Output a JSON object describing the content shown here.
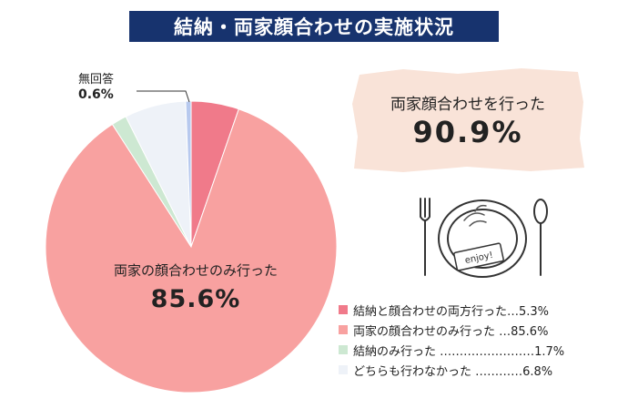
{
  "title": "結納・両家顔合わせの実施状況",
  "callout": {
    "text": "両家顔合わせを行った",
    "value": "90.9%"
  },
  "illustration": {
    "sign_text": "enjoy!"
  },
  "chart_data": {
    "type": "pie",
    "series": [
      {
        "label": "結納と顔合わせの両方行った",
        "value": 5.3,
        "color": "#f07a8a"
      },
      {
        "label": "両家の顔合わせのみ行った",
        "value": 85.6,
        "color": "#f8a1a0"
      },
      {
        "label": "結納のみ行った",
        "value": 1.7,
        "color": "#cde8d2"
      },
      {
        "label": "どちらも行わなかった",
        "value": 6.8,
        "color": "#eef2f8"
      },
      {
        "label": "無回答",
        "value": 0.6,
        "color": "#b7c9ee"
      }
    ],
    "slice_labels": {
      "main": {
        "name": "両家の顔合わせのみ行った",
        "pct": "85.6%"
      },
      "no_answer": {
        "name": "無回答",
        "pct": "0.6%"
      }
    },
    "legend": [
      {
        "text": "結納と顔合わせの両方行った…5.3%",
        "color": "#f07a8a"
      },
      {
        "text": "両家の顔合わせのみ行った …85.6%",
        "color": "#f8a1a0"
      },
      {
        "text": "結納のみ行った ……………………1.7%",
        "color": "#cde8d2"
      },
      {
        "text": "どちらも行わなかった …………6.8%",
        "color": "#eef2f8"
      }
    ]
  }
}
